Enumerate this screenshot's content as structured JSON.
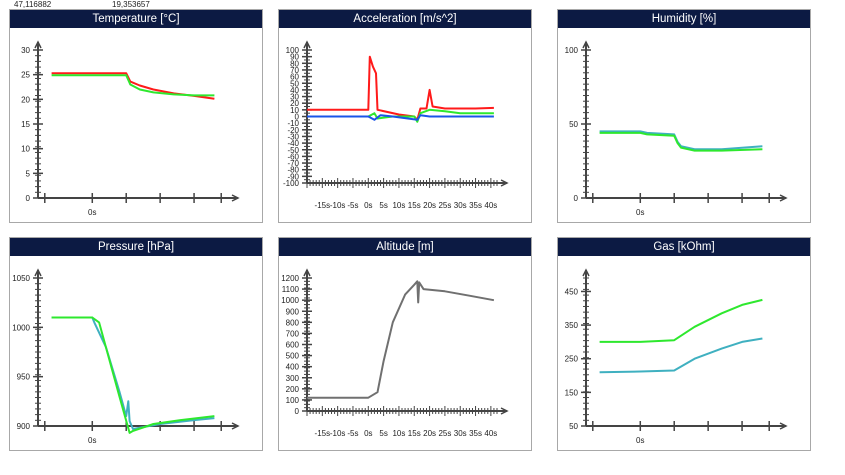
{
  "gps": {
    "lat": "47,116882",
    "lon": "19,353657"
  },
  "colors": {
    "title_bg": "#0c1a43",
    "axis": "#444444",
    "red": "#ff1a1a",
    "green": "#2ee82e",
    "blue": "#1a55e8",
    "teal": "#3fb0c0",
    "gray": "#707070"
  },
  "chart_data": [
    {
      "type": "line",
      "title": "Temperature [°C]",
      "y_ticks": [
        "30",
        "25",
        "20",
        "15",
        "10",
        "5",
        "0"
      ],
      "ylim": [
        0,
        30
      ],
      "x_ticks": [
        "0s"
      ],
      "series": [
        {
          "name": "red",
          "color": "red",
          "points": [
            [
              -6,
              25.3
            ],
            [
              5,
              25.3
            ],
            [
              5.6,
              23.6
            ],
            [
              7,
              22.8
            ],
            [
              9,
              22
            ],
            [
              12,
              21.2
            ],
            [
              15,
              20.7
            ],
            [
              18,
              20.1
            ]
          ]
        },
        {
          "name": "green",
          "color": "green",
          "points": [
            [
              -6,
              24.9
            ],
            [
              5,
              24.9
            ],
            [
              5.6,
              23
            ],
            [
              7,
              22
            ],
            [
              9,
              21.4
            ],
            [
              12,
              21
            ],
            [
              15,
              20.8
            ],
            [
              18,
              20.8
            ]
          ]
        }
      ]
    },
    {
      "type": "line",
      "title": "Acceleration [m/s^2]",
      "y_ticks": [
        "100",
        "90",
        "80",
        "70",
        "60",
        "50",
        "40",
        "30",
        "20",
        "10",
        "0",
        "-10",
        "-20",
        "-30",
        "-40",
        "-50",
        "-60",
        "-70",
        "-80",
        "-90",
        "-100"
      ],
      "ylim": [
        -100,
        100
      ],
      "x_ticks": [
        "-15s",
        "-10s",
        "-5s",
        "0s",
        "5s",
        "10s",
        "15s",
        "20s",
        "25s",
        "30s",
        "35s",
        "40s"
      ],
      "xlim": [
        -20,
        42
      ],
      "series": [
        {
          "name": "red",
          "color": "red",
          "points": [
            [
              -20,
              10
            ],
            [
              0,
              10
            ],
            [
              0.5,
              90
            ],
            [
              1.5,
              75
            ],
            [
              2.5,
              65
            ],
            [
              3,
              10
            ],
            [
              10,
              3
            ],
            [
              15,
              0
            ],
            [
              16,
              -5
            ],
            [
              17,
              12
            ],
            [
              19,
              12
            ],
            [
              20,
              40
            ],
            [
              21,
              15
            ],
            [
              25,
              12
            ],
            [
              30,
              12
            ],
            [
              35,
              12
            ],
            [
              41,
              13
            ]
          ]
        },
        {
          "name": "green",
          "color": "green",
          "points": [
            [
              -20,
              0
            ],
            [
              0,
              0
            ],
            [
              2,
              5
            ],
            [
              3,
              -3
            ],
            [
              8,
              0
            ],
            [
              15,
              0
            ],
            [
              16,
              -8
            ],
            [
              17,
              5
            ],
            [
              20,
              10
            ],
            [
              25,
              8
            ],
            [
              30,
              5
            ],
            [
              41,
              5
            ]
          ]
        },
        {
          "name": "blue",
          "color": "blue",
          "points": [
            [
              -20,
              0
            ],
            [
              0,
              0
            ],
            [
              2,
              -5
            ],
            [
              4,
              2
            ],
            [
              8,
              0
            ],
            [
              16,
              -5
            ],
            [
              17,
              2
            ],
            [
              20,
              0
            ],
            [
              41,
              0
            ]
          ]
        }
      ]
    },
    {
      "type": "line",
      "title": "Humidity [%]",
      "y_ticks": [
        "100",
        "50",
        "0"
      ],
      "ylim": [
        0,
        100
      ],
      "x_ticks": [
        "0s"
      ],
      "series": [
        {
          "name": "teal",
          "color": "teal",
          "points": [
            [
              -6,
              45
            ],
            [
              0,
              45
            ],
            [
              1,
              44
            ],
            [
              5,
              43
            ],
            [
              5.5,
              38
            ],
            [
              6,
              35
            ],
            [
              8,
              33
            ],
            [
              12,
              33
            ],
            [
              18,
              35
            ]
          ]
        },
        {
          "name": "green",
          "color": "green",
          "points": [
            [
              -6,
              44
            ],
            [
              0,
              44
            ],
            [
              1,
              43
            ],
            [
              5,
              42
            ],
            [
              5.5,
              37
            ],
            [
              6,
              34
            ],
            [
              8,
              32
            ],
            [
              12,
              32
            ],
            [
              18,
              33
            ]
          ]
        }
      ]
    },
    {
      "type": "line",
      "title": "Pressure [hPa]",
      "y_ticks": [
        "1050",
        "1000",
        "950",
        "900"
      ],
      "ylim": [
        900,
        1050
      ],
      "x_ticks": [
        "0s"
      ],
      "series": [
        {
          "name": "teal",
          "color": "teal",
          "points": [
            [
              -6,
              1010
            ],
            [
              0,
              1010
            ],
            [
              0.3,
              1005
            ],
            [
              2,
              980
            ],
            [
              4,
              935
            ],
            [
              5,
              910
            ],
            [
              5.3,
              925
            ],
            [
              5.5,
              905
            ],
            [
              6,
              897
            ],
            [
              10,
              902
            ],
            [
              15,
              906
            ],
            [
              18,
              908
            ]
          ]
        },
        {
          "name": "green",
          "color": "green",
          "points": [
            [
              -6,
              1010
            ],
            [
              0,
              1010
            ],
            [
              1,
              1005
            ],
            [
              2,
              980
            ],
            [
              4,
              930
            ],
            [
              5.5,
              893
            ],
            [
              6,
              895
            ],
            [
              9,
              902
            ],
            [
              13,
              906
            ],
            [
              18,
              910
            ]
          ]
        }
      ]
    },
    {
      "type": "line",
      "title": "Altitude [m]",
      "y_ticks": [
        "1200",
        "1100",
        "1000",
        "900",
        "800",
        "700",
        "600",
        "500",
        "400",
        "300",
        "200",
        "100",
        "0"
      ],
      "ylim": [
        0,
        1200
      ],
      "x_ticks": [
        "-15s",
        "-10s",
        "-5s",
        "0s",
        "5s",
        "10s",
        "15s",
        "20s",
        "25s",
        "30s",
        "35s",
        "40s"
      ],
      "xlim": [
        -20,
        42
      ],
      "series": [
        {
          "name": "gray",
          "color": "gray",
          "points": [
            [
              -20,
              120
            ],
            [
              0,
              120
            ],
            [
              3,
              170
            ],
            [
              5,
              450
            ],
            [
              8,
              800
            ],
            [
              12,
              1050
            ],
            [
              15,
              1140
            ],
            [
              16,
              1170
            ],
            [
              16.3,
              980
            ],
            [
              16.6,
              1160
            ],
            [
              18,
              1100
            ],
            [
              25,
              1080
            ],
            [
              33,
              1040
            ],
            [
              41,
              1000
            ]
          ]
        }
      ]
    },
    {
      "type": "line",
      "title": "Gas [kOhm]",
      "y_ticks": [
        "450",
        "350",
        "250",
        "150",
        "50"
      ],
      "ylim": [
        50,
        490
      ],
      "x_ticks": [
        "0s"
      ],
      "series": [
        {
          "name": "green",
          "color": "green",
          "points": [
            [
              -6,
              300
            ],
            [
              0,
              300
            ],
            [
              5,
              305
            ],
            [
              8,
              345
            ],
            [
              12,
              385
            ],
            [
              15,
              410
            ],
            [
              18,
              425
            ]
          ]
        },
        {
          "name": "teal",
          "color": "teal",
          "points": [
            [
              -6,
              210
            ],
            [
              0,
              212
            ],
            [
              5,
              215
            ],
            [
              8,
              250
            ],
            [
              12,
              280
            ],
            [
              15,
              300
            ],
            [
              18,
              310
            ]
          ]
        }
      ]
    }
  ]
}
